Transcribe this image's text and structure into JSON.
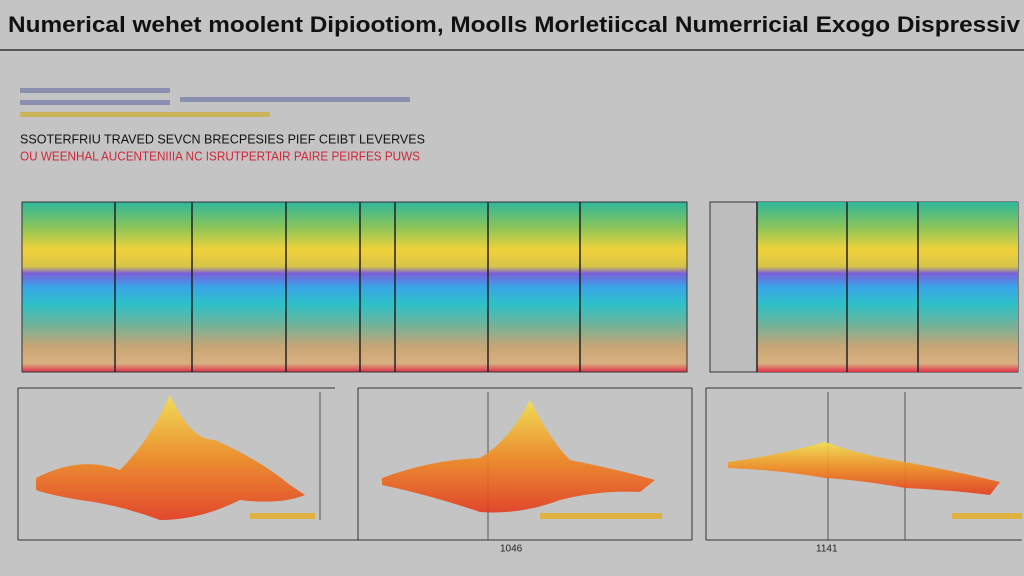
{
  "header": {
    "title": "Numerical wehet moolent Dipiootiom, Moolls Morletiiccal Numerricial Exogo Dispressiv"
  },
  "notes": [
    "SSOTERFRIU TRAVED SEVCN BRECPESIES PIEF CEIBT LEVERVES",
    "OU WEENHAL AUCENTENIIIA NC ISRUTPERTAIR PAIRE PEIRFES PUWS"
  ],
  "panels": [
    {
      "label": "1046"
    },
    {
      "label": "1141"
    }
  ]
}
